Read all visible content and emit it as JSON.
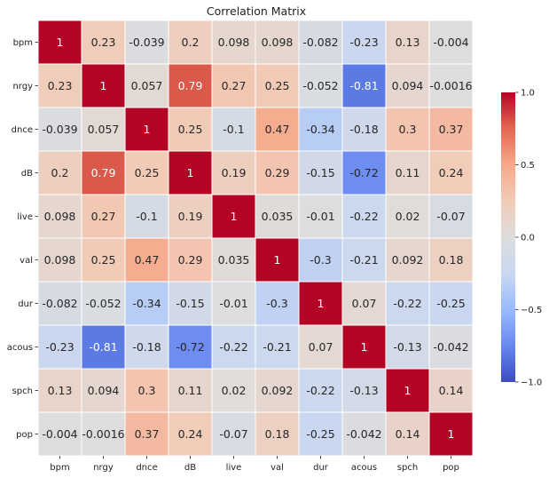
{
  "chart_data": {
    "type": "heatmap",
    "title": "Correlation Matrix",
    "xlabel": "",
    "ylabel": "",
    "labels": [
      "bpm",
      "nrgy",
      "dnce",
      "dB",
      "live",
      "val",
      "dur",
      "acous",
      "spch",
      "pop"
    ],
    "cell_text": [
      [
        "1",
        "0.23",
        "-0.039",
        "0.2",
        "0.098",
        "0.098",
        "-0.082",
        "-0.23",
        "0.13",
        "-0.004"
      ],
      [
        "0.23",
        "1",
        "0.057",
        "0.79",
        "0.27",
        "0.25",
        "-0.052",
        "-0.81",
        "0.094",
        "-0.0016"
      ],
      [
        "-0.039",
        "0.057",
        "1",
        "0.25",
        "-0.1",
        "0.47",
        "-0.34",
        "-0.18",
        "0.3",
        "0.37"
      ],
      [
        "0.2",
        "0.79",
        "0.25",
        "1",
        "0.19",
        "0.29",
        "-0.15",
        "-0.72",
        "0.11",
        "0.24"
      ],
      [
        "0.098",
        "0.27",
        "-0.1",
        "0.19",
        "1",
        "0.035",
        "-0.01",
        "-0.22",
        "0.02",
        "-0.07"
      ],
      [
        "0.098",
        "0.25",
        "0.47",
        "0.29",
        "0.035",
        "1",
        "-0.3",
        "-0.21",
        "0.092",
        "0.18"
      ],
      [
        "-0.082",
        "-0.052",
        "-0.34",
        "-0.15",
        "-0.01",
        "-0.3",
        "1",
        "0.07",
        "-0.22",
        "-0.25"
      ],
      [
        "-0.23",
        "-0.81",
        "-0.18",
        "-0.72",
        "-0.22",
        "-0.21",
        "0.07",
        "1",
        "-0.13",
        "-0.042"
      ],
      [
        "0.13",
        "0.094",
        "0.3",
        "0.11",
        "0.02",
        "0.092",
        "-0.22",
        "-0.13",
        "1",
        "0.14"
      ],
      [
        "-0.004",
        "-0.0016",
        "0.37",
        "0.24",
        "-0.07",
        "0.18",
        "-0.25",
        "-0.042",
        "0.14",
        "1"
      ]
    ],
    "vmin": -1,
    "vmax": 1,
    "colormap": "coolwarm",
    "colormap_stops": [
      "#3b4cc0",
      "#6788ee",
      "#9abbff",
      "#c9d7f0",
      "#dddddd",
      "#f2cbb7",
      "#f7a889",
      "#e26952",
      "#b40426"
    ],
    "colorbar_ticks": [
      {
        "value": 1,
        "label": "1.0"
      },
      {
        "value": 0.5,
        "label": "0.5"
      },
      {
        "value": 0,
        "label": "0.0"
      },
      {
        "value": -0.5,
        "label": "−0.5"
      },
      {
        "value": -1,
        "label": "−1.0"
      }
    ],
    "grid_line_color": "#ffffff",
    "annotations": true
  }
}
